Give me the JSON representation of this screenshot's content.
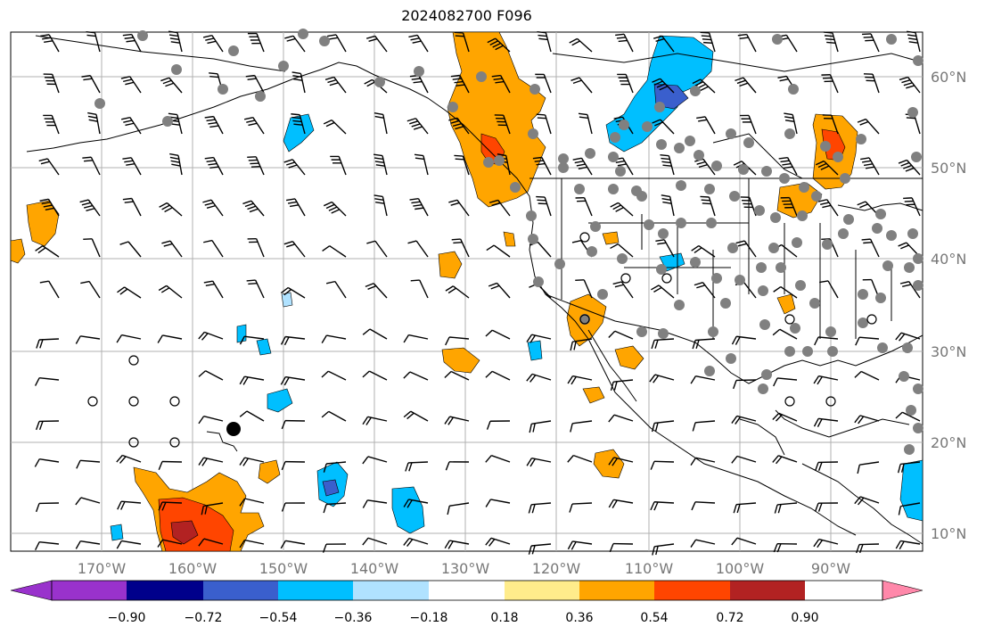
{
  "title": "2024082700 F096",
  "map": {
    "extent_lon": [
      -180,
      -80
    ],
    "extent_lat": [
      8,
      65
    ],
    "lon_labels": [
      "170°W",
      "160°W",
      "150°W",
      "140°W",
      "130°W",
      "120°W",
      "110°W",
      "100°W",
      "90°W"
    ],
    "lat_labels": [
      "10°N",
      "20°N",
      "30°N",
      "40°N",
      "50°N",
      "60°N"
    ],
    "grid": true
  },
  "colorbar": {
    "ticks": [
      "−0.90",
      "−0.72",
      "−0.54",
      "−0.36",
      "−0.18",
      "0.18",
      "0.36",
      "0.54",
      "0.72",
      "0.90"
    ],
    "colors": [
      "#9932cc",
      "#00008b",
      "#3a5fcd",
      "#00bfff",
      "#b0e2ff",
      "#ffffff",
      "#ffec8b",
      "#ffa500",
      "#ff4500",
      "#b22222",
      "#ff88aa"
    ],
    "extend": "both"
  },
  "colors": {
    "grid": "#b0b0b0",
    "coast": "#000000",
    "gray_dot": "#808080"
  }
}
